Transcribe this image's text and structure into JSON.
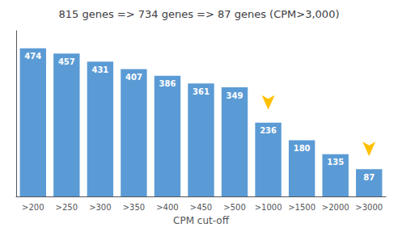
{
  "chart_data": {
    "type": "bar",
    "title": "815 genes => 734 genes => 87 genes (CPM>3,000)",
    "xlabel": "CPM cut-off",
    "categories": [
      ">200",
      ">250",
      ">300",
      ">350",
      ">400",
      ">450",
      ">500",
      ">1000",
      ">1500",
      ">2000",
      ">3000"
    ],
    "values": [
      474,
      457,
      431,
      407,
      386,
      361,
      349,
      236,
      180,
      135,
      87
    ],
    "color": "#5b9bd5",
    "ylim": [
      0,
      530
    ],
    "grid": false,
    "data_labels": true,
    "tick_labels": "x",
    "annotations": [
      {
        "category": ">1000",
        "marker": "arrow",
        "color": "#ffc000"
      },
      {
        "category": ">3000",
        "marker": "arrow",
        "color": "#ffc000"
      }
    ]
  }
}
